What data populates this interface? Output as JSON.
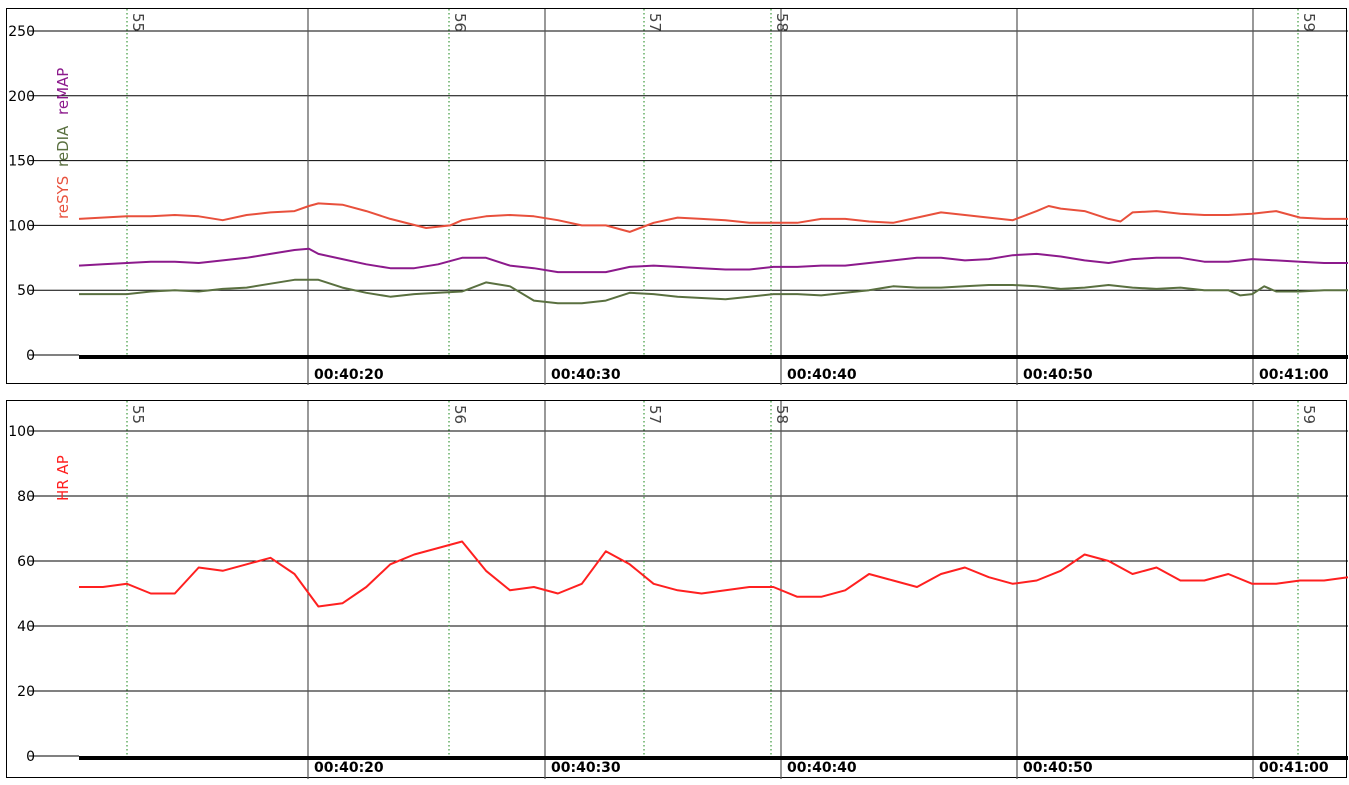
{
  "chart_data": [
    {
      "type": "line",
      "ylim": [
        0,
        250
      ],
      "yticks": [
        0,
        50,
        100,
        150,
        200,
        250
      ],
      "time_ticks": [
        "00:40:20",
        "00:40:30",
        "00:40:40",
        "00:40:50",
        "00:41:00"
      ],
      "markers": [
        "55",
        "56",
        "57",
        "58",
        "59"
      ],
      "grid": true,
      "series": [
        {
          "name": "reSYS",
          "color": "#e8503c",
          "points": [
            [
              0,
              105
            ],
            [
              2,
              107
            ],
            [
              3,
              107
            ],
            [
              4,
              108
            ],
            [
              5,
              107
            ],
            [
              6,
              104
            ],
            [
              7,
              108
            ],
            [
              8,
              110
            ],
            [
              9,
              111
            ],
            [
              9.6,
              115
            ],
            [
              10,
              117
            ],
            [
              11,
              116
            ],
            [
              12,
              111
            ],
            [
              13,
              105
            ],
            [
              14.5,
              98
            ],
            [
              15.5,
              100
            ],
            [
              16,
              104
            ],
            [
              17,
              107
            ],
            [
              18,
              108
            ],
            [
              19,
              107
            ],
            [
              20,
              104
            ],
            [
              21,
              100
            ],
            [
              22,
              100
            ],
            [
              23,
              95
            ],
            [
              24,
              102
            ],
            [
              25,
              106
            ],
            [
              26,
              105
            ],
            [
              27,
              104
            ],
            [
              28,
              102
            ],
            [
              29,
              102
            ],
            [
              30,
              102
            ],
            [
              31,
              105
            ],
            [
              32,
              105
            ],
            [
              33,
              103
            ],
            [
              34,
              102
            ],
            [
              35,
              106
            ],
            [
              36,
              110
            ],
            [
              37,
              108
            ],
            [
              38,
              106
            ],
            [
              39,
              104
            ],
            [
              40,
              111
            ],
            [
              40.5,
              115
            ],
            [
              41,
              113
            ],
            [
              42,
              111
            ],
            [
              43,
              105
            ],
            [
              43.5,
              103
            ],
            [
              44,
              110
            ],
            [
              45,
              111
            ],
            [
              46,
              109
            ],
            [
              47,
              108
            ],
            [
              48,
              108
            ],
            [
              49,
              109
            ],
            [
              50,
              111
            ],
            [
              51,
              106
            ],
            [
              52,
              105
            ],
            [
              53,
              105
            ]
          ]
        },
        {
          "name": "reDIA",
          "color": "#5a7040",
          "points": [
            [
              0,
              47
            ],
            [
              1,
              47
            ],
            [
              2,
              47
            ],
            [
              3,
              49
            ],
            [
              4,
              50
            ],
            [
              5,
              49
            ],
            [
              6,
              51
            ],
            [
              7,
              52
            ],
            [
              8,
              55
            ],
            [
              9,
              58
            ],
            [
              10,
              58
            ],
            [
              11,
              52
            ],
            [
              12,
              48
            ],
            [
              13,
              45
            ],
            [
              14,
              47
            ],
            [
              15,
              48
            ],
            [
              16,
              49
            ],
            [
              17,
              56
            ],
            [
              18,
              53
            ],
            [
              19,
              42
            ],
            [
              20,
              40
            ],
            [
              21,
              40
            ],
            [
              22,
              42
            ],
            [
              23,
              48
            ],
            [
              24,
              47
            ],
            [
              25,
              45
            ],
            [
              26,
              44
            ],
            [
              27,
              43
            ],
            [
              28,
              45
            ],
            [
              29,
              47
            ],
            [
              30,
              47
            ],
            [
              31,
              46
            ],
            [
              32,
              48
            ],
            [
              33,
              50
            ],
            [
              34,
              53
            ],
            [
              35,
              52
            ],
            [
              36,
              52
            ],
            [
              37,
              53
            ],
            [
              38,
              54
            ],
            [
              39,
              54
            ],
            [
              40,
              53
            ],
            [
              41,
              51
            ],
            [
              42,
              52
            ],
            [
              43,
              54
            ],
            [
              44,
              52
            ],
            [
              45,
              51
            ],
            [
              46,
              52
            ],
            [
              47,
              50
            ],
            [
              48,
              50
            ],
            [
              48.5,
              46
            ],
            [
              49,
              47
            ],
            [
              49.5,
              53
            ],
            [
              50,
              49
            ],
            [
              51,
              49
            ],
            [
              52,
              50
            ],
            [
              53,
              50
            ]
          ]
        },
        {
          "name": "reMAP",
          "color": "#8c1a8c",
          "points": [
            [
              0,
              69
            ],
            [
              1,
              70
            ],
            [
              2,
              71
            ],
            [
              3,
              72
            ],
            [
              4,
              72
            ],
            [
              5,
              71
            ],
            [
              6,
              73
            ],
            [
              7,
              75
            ],
            [
              8,
              78
            ],
            [
              9,
              81
            ],
            [
              9.6,
              82
            ],
            [
              10,
              78
            ],
            [
              11,
              74
            ],
            [
              12,
              70
            ],
            [
              13,
              67
            ],
            [
              14,
              67
            ],
            [
              15,
              70
            ],
            [
              16,
              75
            ],
            [
              17,
              75
            ],
            [
              18,
              69
            ],
            [
              19,
              67
            ],
            [
              20,
              64
            ],
            [
              21,
              64
            ],
            [
              22,
              64
            ],
            [
              23,
              68
            ],
            [
              24,
              69
            ],
            [
              25,
              68
            ],
            [
              26,
              67
            ],
            [
              27,
              66
            ],
            [
              28,
              66
            ],
            [
              29,
              68
            ],
            [
              30,
              68
            ],
            [
              31,
              69
            ],
            [
              32,
              69
            ],
            [
              33,
              71
            ],
            [
              34,
              73
            ],
            [
              35,
              75
            ],
            [
              36,
              75
            ],
            [
              37,
              73
            ],
            [
              38,
              74
            ],
            [
              39,
              77
            ],
            [
              40,
              78
            ],
            [
              41,
              76
            ],
            [
              42,
              73
            ],
            [
              43,
              71
            ],
            [
              44,
              74
            ],
            [
              45,
              75
            ],
            [
              46,
              75
            ],
            [
              47,
              72
            ],
            [
              48,
              72
            ],
            [
              49,
              74
            ],
            [
              50,
              73
            ],
            [
              51,
              72
            ],
            [
              52,
              71
            ],
            [
              53,
              71
            ]
          ]
        }
      ]
    },
    {
      "type": "line",
      "ylim": [
        0,
        100
      ],
      "yticks": [
        0,
        20,
        40,
        60,
        80,
        100
      ],
      "time_ticks": [
        "00:40:20",
        "00:40:30",
        "00:40:40",
        "00:40:50",
        "00:41:00"
      ],
      "markers": [
        "55",
        "56",
        "57",
        "58",
        "59"
      ],
      "grid": true,
      "series": [
        {
          "name": "HR AP",
          "color": "#ff2020",
          "points": [
            [
              0,
              52
            ],
            [
              1,
              52
            ],
            [
              2,
              53
            ],
            [
              3,
              50
            ],
            [
              4,
              50
            ],
            [
              5,
              58
            ],
            [
              6,
              57
            ],
            [
              7,
              59
            ],
            [
              8,
              61
            ],
            [
              9,
              56
            ],
            [
              10,
              46
            ],
            [
              11,
              47
            ],
            [
              12,
              52
            ],
            [
              13,
              59
            ],
            [
              14,
              62
            ],
            [
              15,
              64
            ],
            [
              16,
              66
            ],
            [
              17,
              57
            ],
            [
              18,
              51
            ],
            [
              19,
              52
            ],
            [
              20,
              50
            ],
            [
              21,
              53
            ],
            [
              22,
              63
            ],
            [
              23,
              59
            ],
            [
              24,
              53
            ],
            [
              25,
              51
            ],
            [
              26,
              50
            ],
            [
              27,
              51
            ],
            [
              28,
              52
            ],
            [
              29,
              52
            ],
            [
              30,
              49
            ],
            [
              31,
              49
            ],
            [
              32,
              51
            ],
            [
              33,
              56
            ],
            [
              34,
              54
            ],
            [
              35,
              52
            ],
            [
              36,
              56
            ],
            [
              37,
              58
            ],
            [
              38,
              55
            ],
            [
              39,
              53
            ],
            [
              40,
              54
            ],
            [
              41,
              57
            ],
            [
              42,
              62
            ],
            [
              43,
              60
            ],
            [
              44,
              56
            ],
            [
              45,
              58
            ],
            [
              46,
              54
            ],
            [
              47,
              54
            ],
            [
              48,
              56
            ],
            [
              49,
              53
            ],
            [
              50,
              53
            ],
            [
              51,
              54
            ],
            [
              52,
              54
            ],
            [
              53,
              55
            ]
          ]
        }
      ]
    }
  ]
}
